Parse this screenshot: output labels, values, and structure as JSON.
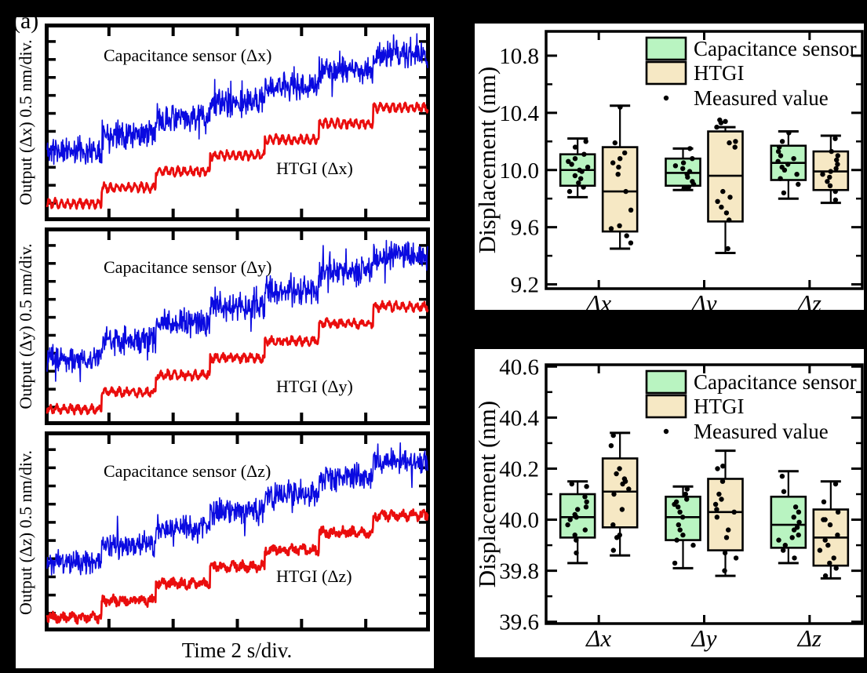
{
  "panel_label": "(a)",
  "colors": {
    "capacitance_line": "#0a0ae0",
    "htgi_line": "#ea0d0d",
    "capacitance_fill": "#b9f4c1",
    "htgi_fill": "#f6e8c4",
    "axis": "#000000",
    "background": "#000000",
    "panel_background": "#ffffff"
  },
  "chart_data": [
    {
      "type": "line",
      "title": "",
      "xlabel": "Time 2 s/div.",
      "x_divisions": 6,
      "y_divisions": 11,
      "panels": [
        {
          "ylabel": "Output (Δx) 0.5 nm/div.",
          "series": [
            {
              "name": "Capacitance sensor (Δx)",
              "color": "#0a0ae0",
              "shape": "noisy-staircase",
              "steps": 7,
              "start_frac": 0.36,
              "end_frac": 0.84,
              "noise_frac": 0.05,
              "seed": 11
            },
            {
              "name": "HTGI (Δx)",
              "color": "#ea0d0d",
              "shape": "oscillating-staircase",
              "steps": 7,
              "start_frac": 0.09,
              "end_frac": 0.575,
              "wiggle_frac": 0.016,
              "wiggles": 62,
              "noise_frac": 0.012,
              "seed": 12
            }
          ]
        },
        {
          "ylabel": "Output (Δy) 0.5 nm/div.",
          "series": [
            {
              "name": "Capacitance sensor (Δy)",
              "color": "#0a0ae0",
              "shape": "noisy-staircase",
              "steps": 7,
              "start_frac": 0.34,
              "end_frac": 0.86,
              "noise_frac": 0.05,
              "seed": 23
            },
            {
              "name": "HTGI (Δy)",
              "color": "#ea0d0d",
              "shape": "oscillating-staircase",
              "steps": 7,
              "start_frac": 0.08,
              "end_frac": 0.6,
              "wiggle_frac": 0.014,
              "wiggles": 55,
              "noise_frac": 0.014,
              "seed": 24
            }
          ]
        },
        {
          "ylabel": "Output (Δz) 0.5 nm/div.",
          "series": [
            {
              "name": "Capacitance sensor (Δz)",
              "color": "#0a0ae0",
              "shape": "noisy-staircase",
              "steps": 7,
              "start_frac": 0.35,
              "end_frac": 0.85,
              "noise_frac": 0.045,
              "seed": 35
            },
            {
              "name": "HTGI (Δz)",
              "color": "#ea0d0d",
              "shape": "oscillating-staircase",
              "steps": 7,
              "start_frac": 0.07,
              "end_frac": 0.58,
              "wiggle_frac": 0.012,
              "wiggles": 38,
              "noise_frac": 0.02,
              "seed": 36
            }
          ]
        }
      ]
    },
    {
      "type": "box",
      "ylabel": "Displacement (nm)",
      "ylim": [
        9.17,
        10.97
      ],
      "ytick_labels": [
        "9.2",
        "9.6",
        "10.0",
        "10.4",
        "10.8"
      ],
      "yticks_major": [
        9.2,
        9.6,
        10.0,
        10.4,
        10.8
      ],
      "yticks_minor": [
        9.4,
        9.8,
        10.2,
        10.6
      ],
      "categories": [
        "Δx",
        "Δy",
        "Δz"
      ],
      "legend": {
        "capacitance": "Capacitance sensor",
        "htgi": "HTGI",
        "measured": "Measured value"
      },
      "series": [
        {
          "name": "Capacitance sensor",
          "fill": "#b9f4c1",
          "boxes": [
            {
              "category": "Δx",
              "whisker_low": 9.81,
              "q1": 9.89,
              "median": 10.0,
              "q3": 10.11,
              "whisker_high": 10.22,
              "points": [
                9.85,
                9.88,
                9.91,
                9.94,
                9.96,
                9.99,
                10.0,
                10.02,
                10.04,
                10.06,
                10.08,
                10.11,
                10.16,
                10.2
              ]
            },
            {
              "category": "Δy",
              "whisker_low": 9.86,
              "q1": 9.89,
              "median": 9.98,
              "q3": 10.08,
              "whisker_high": 10.15,
              "points": [
                9.87,
                9.87,
                9.88,
                9.9,
                9.92,
                9.95,
                9.97,
                9.99,
                10.01,
                10.03,
                10.05,
                10.08,
                10.15
              ]
            },
            {
              "category": "Δz",
              "whisker_low": 9.8,
              "q1": 9.93,
              "median": 10.05,
              "q3": 10.17,
              "whisker_high": 10.27,
              "points": [
                9.84,
                9.9,
                9.94,
                9.97,
                10.0,
                10.02,
                10.04,
                10.06,
                10.08,
                10.1,
                10.13,
                10.16,
                10.2,
                10.26
              ]
            }
          ]
        },
        {
          "name": "HTGI",
          "fill": "#f6e8c4",
          "boxes": [
            {
              "category": "Δx",
              "whisker_low": 9.45,
              "q1": 9.57,
              "median": 9.85,
              "q3": 10.16,
              "whisker_high": 10.45,
              "points": [
                9.49,
                9.54,
                9.59,
                9.61,
                9.72,
                9.85,
                9.97,
                10.02,
                10.05,
                10.08,
                10.12,
                10.19,
                10.44
              ]
            },
            {
              "category": "Δy",
              "whisker_low": 9.42,
              "q1": 9.64,
              "median": 9.96,
              "q3": 10.27,
              "whisker_high": 10.3,
              "points": [
                9.45,
                9.65,
                9.7,
                9.74,
                9.78,
                9.81,
                9.85,
                10.16,
                10.19,
                10.2,
                10.3,
                10.33,
                10.34,
                10.35
              ]
            },
            {
              "category": "Δz",
              "whisker_low": 9.77,
              "q1": 9.86,
              "median": 9.99,
              "q3": 10.13,
              "whisker_high": 10.24,
              "points": [
                9.79,
                9.85,
                9.89,
                9.92,
                9.95,
                9.97,
                9.99,
                10.01,
                10.04,
                10.07,
                10.1,
                10.13,
                10.22
              ]
            }
          ]
        }
      ]
    },
    {
      "type": "box",
      "ylabel": "Displacement (nm)",
      "ylim": [
        39.593,
        40.607
      ],
      "ytick_labels": [
        "39.6",
        "39.8",
        "40.0",
        "40.2",
        "40.4",
        "40.6"
      ],
      "yticks_major": [
        39.6,
        39.8,
        40.0,
        40.2,
        40.4,
        40.6
      ],
      "yticks_minor": [
        39.7,
        39.9,
        40.1,
        40.3,
        40.5
      ],
      "categories": [
        "Δx",
        "Δy",
        "Δz"
      ],
      "legend": {
        "capacitance": "Capacitance sensor",
        "htgi": "HTGI",
        "measured": "Measured value"
      },
      "series": [
        {
          "name": "Capacitance sensor",
          "fill": "#b9f4c1",
          "boxes": [
            {
              "category": "Δx",
              "whisker_low": 39.83,
              "q1": 39.93,
              "median": 40.01,
              "q3": 40.1,
              "whisker_high": 40.15,
              "points": [
                39.87,
                39.92,
                39.94,
                39.96,
                39.98,
                40.0,
                40.01,
                40.02,
                40.04,
                40.05,
                40.07,
                40.09,
                40.13,
                40.14
              ]
            },
            {
              "category": "Δy",
              "whisker_low": 39.81,
              "q1": 39.92,
              "median": 40.01,
              "q3": 40.09,
              "whisker_high": 40.13,
              "points": [
                39.83,
                39.9,
                39.92,
                39.94,
                39.96,
                39.98,
                40.01,
                40.03,
                40.05,
                40.06,
                40.07,
                40.08,
                40.1,
                40.12
              ]
            },
            {
              "category": "Δz",
              "whisker_low": 39.83,
              "q1": 39.89,
              "median": 39.98,
              "q3": 40.09,
              "whisker_high": 40.19,
              "points": [
                39.85,
                39.88,
                39.9,
                39.92,
                39.93,
                39.94,
                39.96,
                39.97,
                39.99,
                40.01,
                40.03,
                40.05,
                40.11,
                40.17
              ]
            }
          ]
        },
        {
          "name": "HTGI",
          "fill": "#f6e8c4",
          "boxes": [
            {
              "category": "Δx",
              "whisker_low": 39.86,
              "q1": 39.97,
              "median": 40.11,
              "q3": 40.24,
              "whisker_high": 40.34,
              "points": [
                39.88,
                39.93,
                39.94,
                39.98,
                40.04,
                40.1,
                40.12,
                40.14,
                40.15,
                40.16,
                40.18,
                40.2,
                40.29,
                40.33
              ]
            },
            {
              "category": "Δy",
              "whisker_low": 39.78,
              "q1": 39.88,
              "median": 40.03,
              "q3": 40.16,
              "whisker_high": 40.27,
              "points": [
                39.8,
                39.85,
                39.87,
                39.93,
                39.96,
                40.01,
                40.03,
                40.04,
                40.06,
                40.08,
                40.1,
                40.15,
                40.2,
                40.21
              ]
            },
            {
              "category": "Δz",
              "whisker_low": 39.77,
              "q1": 39.82,
              "median": 39.93,
              "q3": 40.04,
              "whisker_high": 40.15,
              "points": [
                39.78,
                39.81,
                39.83,
                39.85,
                39.88,
                39.9,
                39.92,
                39.94,
                39.98,
                40.0,
                40.0,
                40.03,
                40.07,
                40.14
              ]
            }
          ]
        }
      ]
    }
  ]
}
